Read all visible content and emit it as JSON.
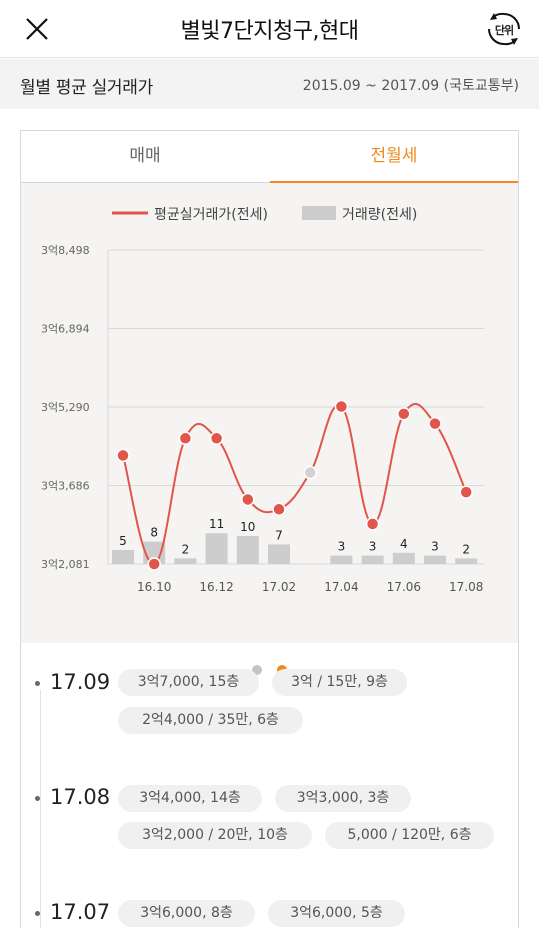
{
  "header": {
    "title": "별빛7단지청구,현대",
    "unit_button_label": "단위"
  },
  "subheader": {
    "label": "월별 평균 실거래가",
    "period": "2015.09 ~ 2017.09 (국토교통부)"
  },
  "tabs": [
    {
      "label": "매매",
      "active": false
    },
    {
      "label": "전월세",
      "active": true
    }
  ],
  "colors": {
    "accent": "#f08a1c",
    "line": "#e0564a",
    "bar": "#cdcdcd"
  },
  "chart_data": {
    "type": "bar+line",
    "legend": [
      "평균실거래가(전세)",
      "거래량(전세)"
    ],
    "y_tick_labels": [
      "3억8,498",
      "3억6,894",
      "3억5,290",
      "3억3,686",
      "3억2,081"
    ],
    "y_ticks": [
      38498,
      36894,
      35290,
      33686,
      32081
    ],
    "ylim": [
      32081,
      38498
    ],
    "x_tick_labels": [
      "16.10",
      "16.12",
      "17.02",
      "17.04",
      "17.06",
      "17.08"
    ],
    "months": [
      "16.09",
      "16.10",
      "16.11",
      "16.12",
      "17.01",
      "17.02",
      "17.03",
      "17.04",
      "17.05",
      "17.06",
      "17.07",
      "17.08"
    ],
    "price": [
      34300,
      32081,
      34650,
      34650,
      33400,
      33200,
      null,
      35300,
      32900,
      35150,
      34950,
      33550
    ],
    "volume": [
      5,
      8,
      2,
      11,
      10,
      7,
      null,
      3,
      3,
      4,
      3,
      2
    ],
    "volume_labels": [
      "5",
      "8",
      "2",
      "11",
      "10",
      "7",
      "",
      "3",
      "3",
      "4",
      "3",
      "2"
    ]
  },
  "pager": {
    "pages": 2,
    "active": 1
  },
  "transactions": [
    {
      "month": "17.09",
      "items": [
        "3억7,000, 15층",
        "3억 / 15만, 9층",
        "2억4,000 / 35만, 6층"
      ]
    },
    {
      "month": "17.08",
      "items": [
        "3억4,000, 14층",
        "3억3,000, 3층",
        "3억2,000 / 20만, 10층",
        "5,000 / 120만, 6층"
      ]
    },
    {
      "month": "17.07",
      "items": [
        "3억6,000, 8층",
        "3억6,000, 5층"
      ]
    }
  ]
}
